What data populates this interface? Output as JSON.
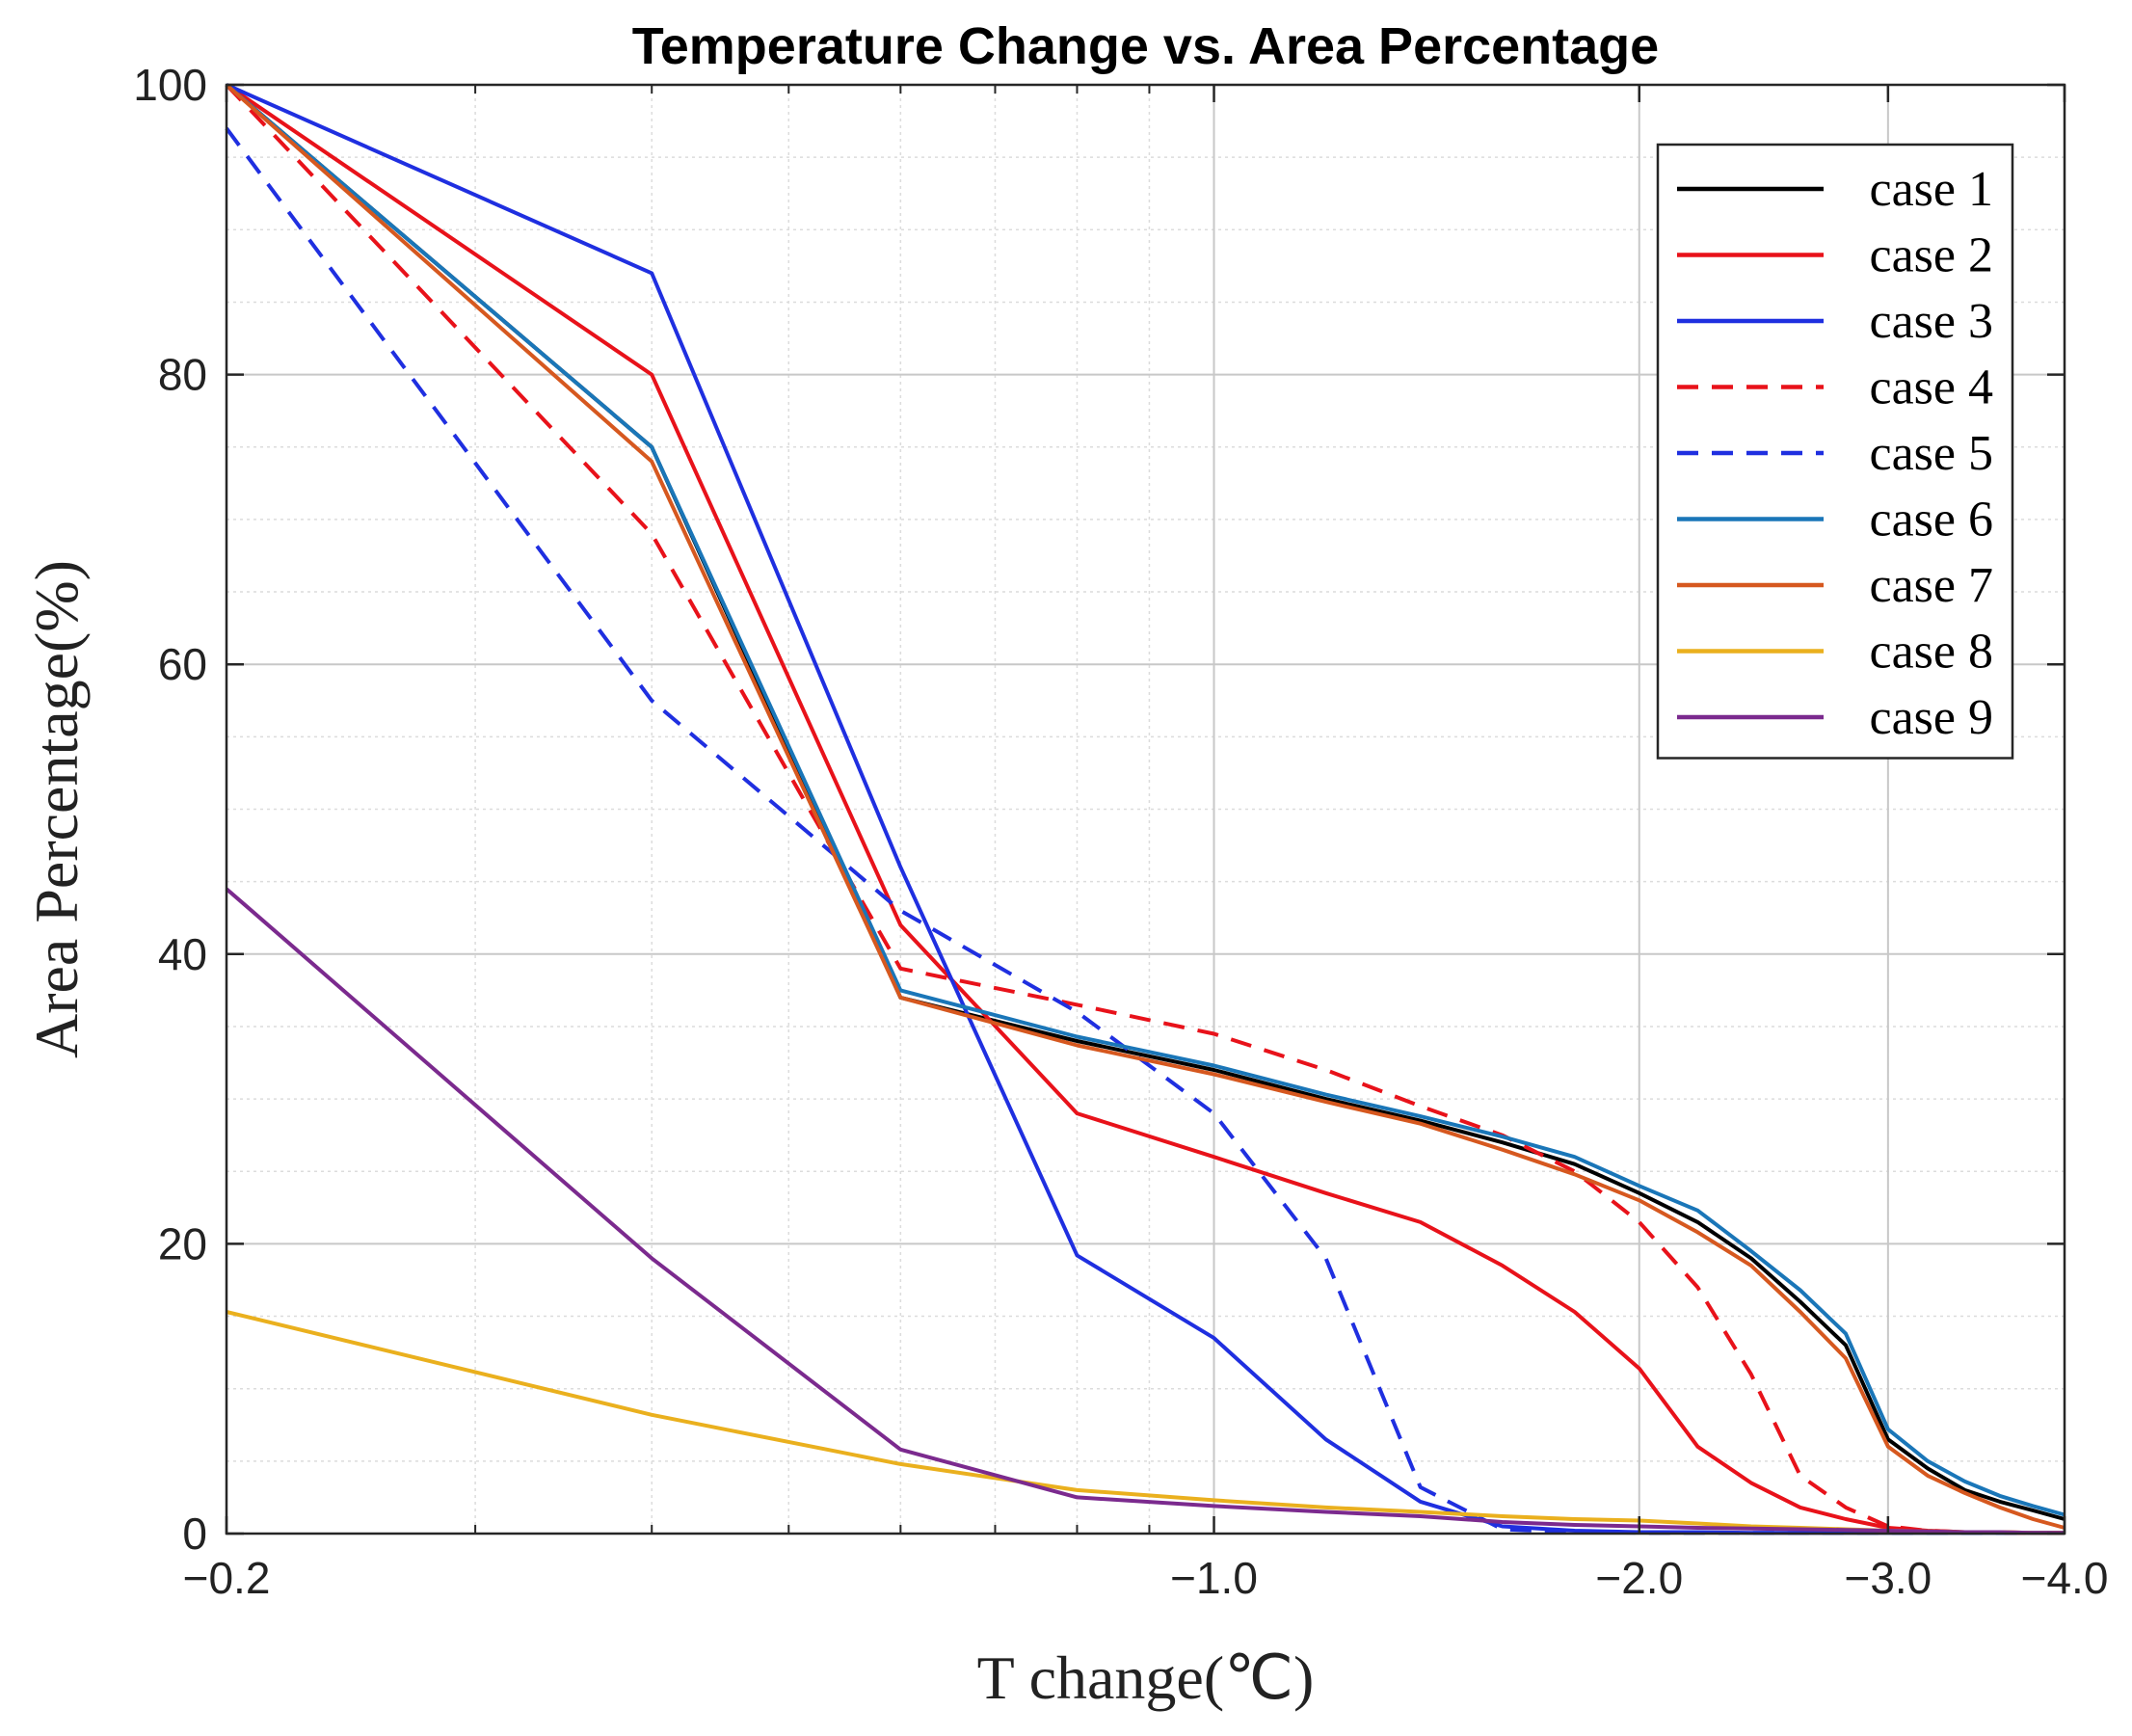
{
  "chart_data": {
    "type": "line",
    "title": "Temperature Change vs. Area Percentage",
    "xlabel": "T change(℃)",
    "ylabel": "Area Percentage(%)",
    "xlim": [
      -0.2,
      -4.0
    ],
    "ylim": [
      0,
      100
    ],
    "x_scale": "log-reversed",
    "xticks": [
      -0.2,
      -1.0,
      -2.0,
      -3.0,
      -4.0
    ],
    "xtick_labels": [
      "−0.2",
      "−1.0",
      "−2.0",
      "−3.0",
      "−4.0"
    ],
    "yticks": [
      0,
      20,
      40,
      60,
      80,
      100
    ],
    "ytick_labels": [
      "0",
      "20",
      "40",
      "60",
      "80",
      "100"
    ],
    "grid": true,
    "legend_position": "top-right",
    "x": [
      -0.2,
      -0.4,
      -0.6,
      -0.8,
      -1.0,
      -1.2,
      -1.4,
      -1.6,
      -1.8,
      -2.0,
      -2.2,
      -2.4,
      -2.6,
      -2.8,
      -3.0,
      -3.2,
      -3.4,
      -3.6,
      -3.8,
      -4.0
    ],
    "series": [
      {
        "name": "case 1",
        "color": "#000000",
        "dash": "solid",
        "values": [
          100,
          75,
          37,
          34,
          32,
          30,
          28.5,
          27,
          25.5,
          23.5,
          21.5,
          19,
          16,
          13,
          6.5,
          4.5,
          3,
          2.2,
          1.6,
          1.0
        ]
      },
      {
        "name": "case 2",
        "color": "#e8121a",
        "dash": "solid",
        "values": [
          100,
          80,
          42,
          29,
          26,
          23.5,
          21.5,
          18.5,
          15.3,
          11.4,
          6.0,
          3.5,
          1.8,
          1.0,
          0.4,
          0.2,
          0.1,
          0.1,
          0.05,
          0.05
        ]
      },
      {
        "name": "case 3",
        "color": "#1f2fe0",
        "dash": "solid",
        "values": [
          100,
          87,
          46,
          19.2,
          13.5,
          6.5,
          2.2,
          0.5,
          0.2,
          0.1,
          0.1,
          0.05,
          0.05,
          0.05,
          0.05,
          0.05,
          0.05,
          0.05,
          0.05,
          0.05
        ]
      },
      {
        "name": "case 4",
        "color": "#e8121a",
        "dash": "dashed",
        "values": [
          100,
          69,
          39,
          36.5,
          34.5,
          32,
          29.5,
          27.5,
          25,
          21.5,
          17,
          11,
          4,
          1.8,
          0.5,
          0.2,
          0.1,
          0.05,
          0.05,
          0.05
        ]
      },
      {
        "name": "case 5",
        "color": "#1f2fe0",
        "dash": "dashed",
        "values": [
          97,
          57.5,
          43,
          36,
          29,
          19,
          3.2,
          0.3,
          0.1,
          0.05,
          0.05,
          0.05,
          0.05,
          0.05,
          0.05,
          0.05,
          0.05,
          0.05,
          0.05,
          0.05
        ]
      },
      {
        "name": "case 6",
        "color": "#1a76b8",
        "dash": "solid",
        "values": [
          100,
          75,
          37.5,
          34.3,
          32.3,
          30.3,
          28.8,
          27.4,
          26,
          24,
          22.3,
          19.5,
          16.8,
          13.8,
          7.2,
          5,
          3.6,
          2.6,
          1.9,
          1.3
        ]
      },
      {
        "name": "case 7",
        "color": "#d6581f",
        "dash": "solid",
        "values": [
          100,
          74,
          37,
          33.7,
          31.7,
          29.8,
          28.3,
          26.5,
          24.8,
          23,
          20.8,
          18.5,
          15.3,
          12.1,
          6,
          4,
          2.8,
          1.8,
          1.0,
          0.4
        ]
      },
      {
        "name": "case 8",
        "color": "#eab01e",
        "dash": "solid",
        "values": [
          15.3,
          8.2,
          4.8,
          3.0,
          2.3,
          1.8,
          1.5,
          1.2,
          1.0,
          0.9,
          0.7,
          0.5,
          0.4,
          0.3,
          0.2,
          0.15,
          0.1,
          0.1,
          0.05,
          0.05
        ]
      },
      {
        "name": "case 9",
        "color": "#7b2a8e",
        "dash": "solid",
        "values": [
          44.5,
          19,
          5.8,
          2.5,
          1.9,
          1.5,
          1.2,
          0.8,
          0.6,
          0.5,
          0.4,
          0.35,
          0.3,
          0.25,
          0.2,
          0.15,
          0.1,
          0.1,
          0.05,
          0.05
        ]
      }
    ]
  }
}
